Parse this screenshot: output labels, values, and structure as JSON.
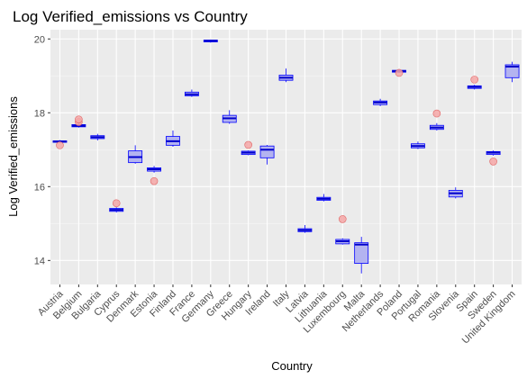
{
  "colors": {
    "panel": "#ebebeb",
    "grid_major": "#ffffff",
    "box_fill": "#b3b3f0",
    "box_stroke": "#0000ff",
    "median": "#0000cc",
    "outlier_fill": "#f4a6a6",
    "outlier_stroke": "#e06666"
  },
  "chart_data": {
    "type": "boxplot",
    "title": "Log Verified_emissions  vs Country",
    "xlabel": "Country",
    "ylabel": "Log Verified_emissions",
    "ylim": [
      13.35,
      20.25
    ],
    "yticks": [
      14,
      16,
      18,
      20
    ],
    "grid": true,
    "categories": [
      "Austria",
      "Belgium",
      "Bulgaria",
      "Cyprus",
      "Denmark",
      "Estonia",
      "Finland",
      "France",
      "Germany",
      "Greece",
      "Hungary",
      "Ireland",
      "Italy",
      "Latvia",
      "Lithuania",
      "Luxembourg",
      "Malta",
      "Netherlands",
      "Poland",
      "Portugal",
      "Romania",
      "Slovenia",
      "Spain",
      "Sweden",
      "United Kingdom"
    ],
    "boxes": [
      {
        "min": 17.18,
        "q1": 17.2,
        "median": 17.22,
        "q3": 17.24,
        "max": 17.26,
        "outliers": [
          17.12
        ]
      },
      {
        "min": 17.6,
        "q1": 17.62,
        "median": 17.65,
        "q3": 17.68,
        "max": 17.72,
        "outliers": [
          17.75,
          17.82
        ]
      },
      {
        "min": 17.25,
        "q1": 17.3,
        "median": 17.34,
        "q3": 17.38,
        "max": 17.43,
        "outliers": []
      },
      {
        "min": 15.3,
        "q1": 15.33,
        "median": 15.37,
        "q3": 15.41,
        "max": 15.44,
        "outliers": [
          15.55
        ]
      },
      {
        "min": 16.62,
        "q1": 16.65,
        "median": 16.8,
        "q3": 16.97,
        "max": 17.12,
        "outliers": []
      },
      {
        "min": 16.38,
        "q1": 16.42,
        "median": 16.47,
        "q3": 16.51,
        "max": 16.56,
        "outliers": [
          16.15
        ]
      },
      {
        "min": 17.08,
        "q1": 17.12,
        "median": 17.23,
        "q3": 17.36,
        "max": 17.52,
        "outliers": []
      },
      {
        "min": 18.43,
        "q1": 18.46,
        "median": 18.5,
        "q3": 18.56,
        "max": 18.63,
        "outliers": []
      },
      {
        "min": 19.9,
        "q1": 19.92,
        "median": 19.95,
        "q3": 19.97,
        "max": 19.98,
        "outliers": []
      },
      {
        "min": 17.7,
        "q1": 17.74,
        "median": 17.85,
        "q3": 17.93,
        "max": 18.07,
        "outliers": []
      },
      {
        "min": 16.85,
        "q1": 16.87,
        "median": 16.92,
        "q3": 16.96,
        "max": 16.98,
        "outliers": [
          17.13
        ]
      },
      {
        "min": 16.6,
        "q1": 16.78,
        "median": 17.0,
        "q3": 17.1,
        "max": 17.13,
        "outliers": []
      },
      {
        "min": 18.83,
        "q1": 18.88,
        "median": 18.95,
        "q3": 19.02,
        "max": 19.2,
        "outliers": []
      },
      {
        "min": 14.75,
        "q1": 14.78,
        "median": 14.82,
        "q3": 14.86,
        "max": 14.96,
        "outliers": []
      },
      {
        "min": 15.6,
        "q1": 15.63,
        "median": 15.67,
        "q3": 15.71,
        "max": 15.8,
        "outliers": []
      },
      {
        "min": 14.43,
        "q1": 14.45,
        "median": 14.52,
        "q3": 14.57,
        "max": 14.6,
        "outliers": [
          15.12
        ]
      },
      {
        "min": 13.65,
        "q1": 13.92,
        "median": 14.43,
        "q3": 14.48,
        "max": 14.64,
        "outliers": []
      },
      {
        "min": 18.18,
        "q1": 18.22,
        "median": 18.28,
        "q3": 18.32,
        "max": 18.38,
        "outliers": []
      },
      {
        "min": 19.08,
        "q1": 19.1,
        "median": 19.13,
        "q3": 19.15,
        "max": 19.18,
        "outliers": [
          19.08
        ]
      },
      {
        "min": 17.02,
        "q1": 17.05,
        "median": 17.1,
        "q3": 17.16,
        "max": 17.22,
        "outliers": []
      },
      {
        "min": 17.52,
        "q1": 17.55,
        "median": 17.6,
        "q3": 17.66,
        "max": 17.72,
        "outliers": [
          17.98
        ]
      },
      {
        "min": 15.68,
        "q1": 15.72,
        "median": 15.82,
        "q3": 15.9,
        "max": 15.98,
        "outliers": []
      },
      {
        "min": 18.63,
        "q1": 18.66,
        "median": 18.7,
        "q3": 18.73,
        "max": 18.76,
        "outliers": [
          18.9
        ]
      },
      {
        "min": 16.84,
        "q1": 16.87,
        "median": 16.92,
        "q3": 16.95,
        "max": 16.98,
        "outliers": [
          16.68
        ]
      },
      {
        "min": 18.83,
        "q1": 18.95,
        "median": 19.25,
        "q3": 19.3,
        "max": 19.38,
        "outliers": []
      }
    ]
  }
}
